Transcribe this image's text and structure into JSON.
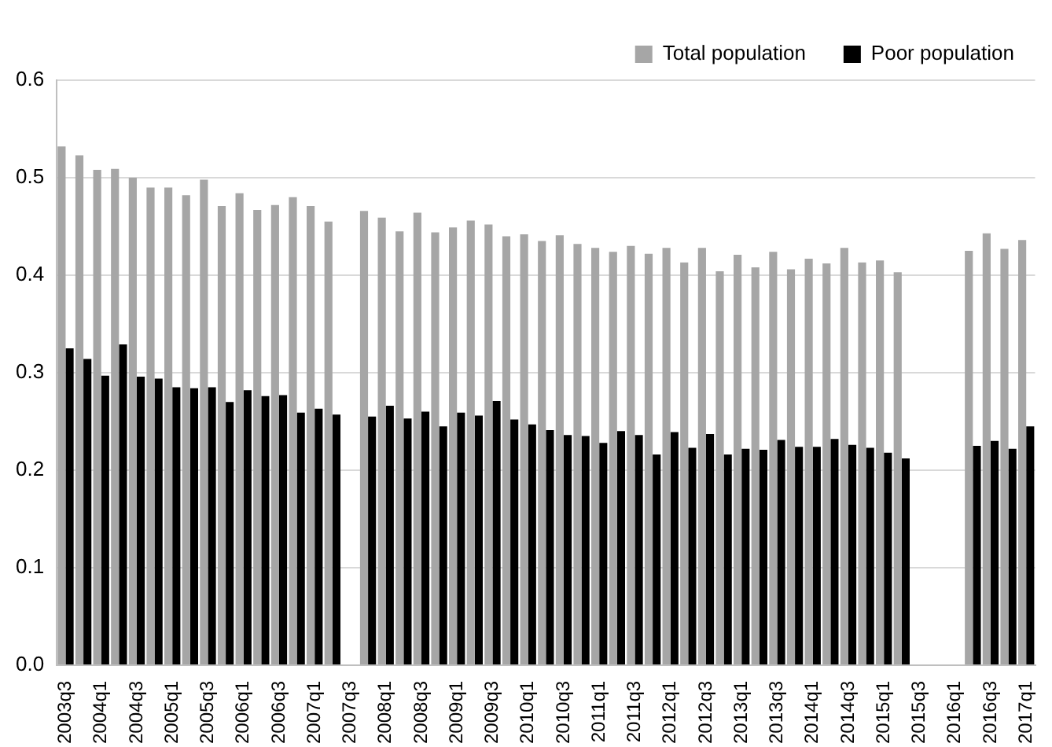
{
  "chart_data": {
    "type": "bar",
    "categories": [
      "2003q3",
      null,
      "2004q1",
      null,
      "2004q3",
      null,
      "2005q1",
      null,
      "2005q3",
      null,
      "2006q1",
      null,
      "2006q3",
      null,
      "2007q1",
      null,
      "2007q3",
      null,
      "2008q1",
      null,
      "2008q3",
      null,
      "2009q1",
      null,
      "2009q3",
      null,
      "2010q1",
      null,
      "2010q3",
      null,
      "2011q1",
      null,
      "2011q3",
      null,
      "2012q1",
      null,
      "2012q3",
      null,
      "2013q1",
      null,
      "2013q3",
      null,
      "2014q1",
      null,
      "2014q3",
      null,
      "2015q1",
      null,
      "2015q3",
      null,
      "2016q1",
      null,
      "2016q3",
      null,
      "2017q1"
    ],
    "series": [
      {
        "name": "Total population",
        "color": "#a6a6a6",
        "values": [
          0.532,
          0.523,
          0.508,
          0.509,
          0.5,
          0.49,
          0.49,
          0.482,
          0.498,
          0.471,
          0.484,
          0.467,
          0.472,
          0.48,
          0.471,
          0.455,
          null,
          0.466,
          0.459,
          0.445,
          0.464,
          0.444,
          0.449,
          0.456,
          0.452,
          0.44,
          0.442,
          0.435,
          0.441,
          0.432,
          0.428,
          0.424,
          0.43,
          0.422,
          0.428,
          0.413,
          0.428,
          0.404,
          0.421,
          0.408,
          0.424,
          0.406,
          0.417,
          0.412,
          0.428,
          0.413,
          0.415,
          0.403,
          null,
          null,
          null,
          0.425,
          0.443,
          0.427,
          0.436
        ]
      },
      {
        "name": "Poor population",
        "color": "#000000",
        "values": [
          0.325,
          0.314,
          0.297,
          0.329,
          0.296,
          0.294,
          0.285,
          0.284,
          0.285,
          0.27,
          0.282,
          0.276,
          0.277,
          0.259,
          0.263,
          0.257,
          null,
          0.255,
          0.266,
          0.253,
          0.26,
          0.245,
          0.259,
          0.256,
          0.271,
          0.252,
          0.247,
          0.241,
          0.236,
          0.235,
          0.228,
          0.24,
          0.236,
          0.216,
          0.239,
          0.223,
          0.237,
          0.216,
          0.222,
          0.221,
          0.231,
          0.224,
          0.224,
          0.232,
          0.226,
          0.223,
          0.218,
          0.212,
          null,
          null,
          null,
          0.225,
          0.23,
          0.222,
          0.245
        ]
      }
    ],
    "ylim": [
      0,
      0.6
    ],
    "yticks": [
      {
        "value": 0,
        "label": "0.0"
      },
      {
        "value": 0.1,
        "label": "0.1"
      },
      {
        "value": 0.2,
        "label": "0.2"
      },
      {
        "value": 0.3,
        "label": "0.3"
      },
      {
        "value": 0.4,
        "label": "0.4"
      },
      {
        "value": 0.5,
        "label": "0.5"
      },
      {
        "value": 0.6,
        "label": "0.6"
      }
    ],
    "grid": "y",
    "legend": "top right"
  }
}
